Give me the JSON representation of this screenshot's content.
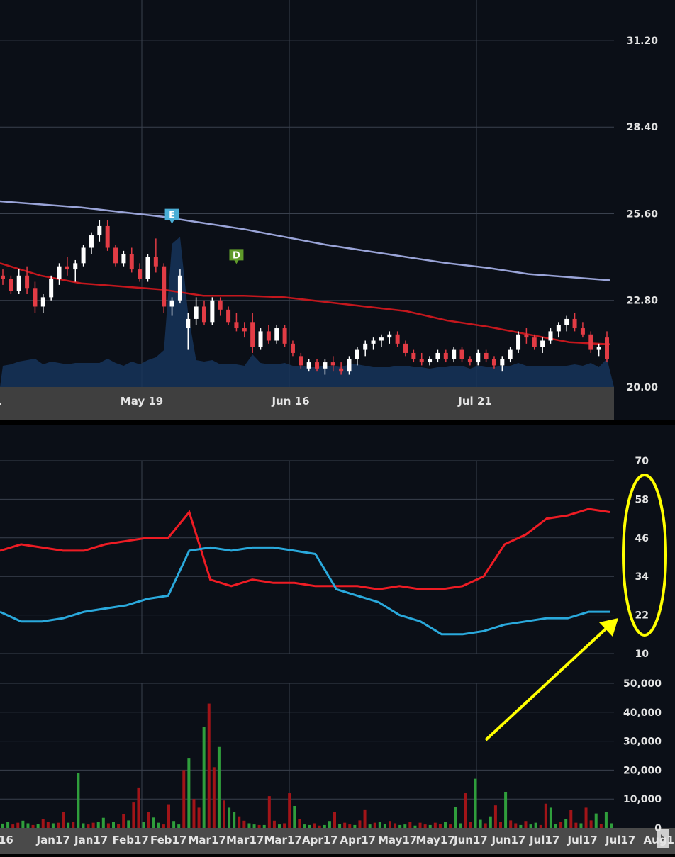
{
  "colors": {
    "background": "#0b0f17",
    "price_area": "#16345a",
    "grid": "#3a414e",
    "up_candle": "#ffffff",
    "down_candle": "#e23c45",
    "ma_long": "#9aa4d8",
    "ma_short": "#c4171d",
    "rsi_red": "#ee1c24",
    "rsi_blue": "#2aa9dc",
    "vol_up": "#2f9e3c",
    "vol_down": "#a11418",
    "axis_bar": "#3f3f3f",
    "annotation": "#ffff00"
  },
  "chart_data": [
    {
      "type": "line",
      "panel": "price",
      "ylim": [
        20.0,
        32.0
      ],
      "yticks": [
        "31.20",
        "28.40",
        "25.60",
        "22.80",
        "20.00"
      ],
      "xtick_labels": [
        "1",
        "May 19",
        "Jun 16",
        "Jul 21"
      ],
      "series": [
        {
          "kind": "long-moving-average",
          "values": [
            26.0,
            25.9,
            25.8,
            25.65,
            25.5,
            25.3,
            25.1,
            24.85,
            24.6,
            24.4,
            24.2,
            24.0,
            23.85,
            23.65,
            23.55,
            23.45
          ]
        },
        {
          "kind": "short-moving-average",
          "values": [
            24.0,
            23.6,
            23.35,
            23.25,
            23.15,
            22.95,
            22.95,
            22.9,
            22.75,
            22.6,
            22.45,
            22.15,
            21.95,
            21.7,
            21.45,
            21.38
          ]
        }
      ],
      "candles": [
        [
          23.6,
          23.8,
          23.3,
          23.5
        ],
        [
          23.5,
          23.6,
          23.0,
          23.1
        ],
        [
          23.1,
          23.8,
          23.0,
          23.6
        ],
        [
          23.6,
          23.9,
          23.0,
          23.2
        ],
        [
          23.2,
          23.4,
          22.4,
          22.6
        ],
        [
          22.6,
          23.0,
          22.4,
          22.9
        ],
        [
          22.9,
          23.6,
          22.8,
          23.5
        ],
        [
          23.5,
          24.0,
          23.3,
          23.9
        ],
        [
          23.9,
          24.2,
          23.6,
          23.8
        ],
        [
          23.8,
          24.1,
          23.4,
          24.0
        ],
        [
          24.0,
          24.6,
          23.9,
          24.5
        ],
        [
          24.5,
          25.0,
          24.3,
          24.9
        ],
        [
          24.9,
          25.4,
          24.7,
          25.2
        ],
        [
          25.2,
          25.4,
          24.4,
          24.5
        ],
        [
          24.5,
          24.6,
          23.9,
          24.0
        ],
        [
          24.0,
          24.4,
          23.9,
          24.3
        ],
        [
          24.3,
          24.5,
          23.7,
          23.8
        ],
        [
          23.8,
          24.0,
          23.4,
          23.5
        ],
        [
          23.5,
          24.3,
          23.4,
          24.2
        ],
        [
          24.2,
          24.8,
          23.7,
          23.9
        ],
        [
          23.9,
          24.0,
          22.4,
          22.6
        ],
        [
          22.6,
          22.9,
          22.3,
          22.8
        ],
        [
          22.8,
          23.8,
          22.7,
          23.6
        ],
        [
          21.9,
          22.4,
          21.2,
          22.2
        ],
        [
          22.2,
          22.9,
          22.0,
          22.6
        ],
        [
          22.6,
          22.8,
          22.0,
          22.1
        ],
        [
          22.1,
          22.9,
          22.0,
          22.8
        ],
        [
          22.8,
          22.9,
          22.3,
          22.5
        ],
        [
          22.5,
          22.6,
          22.0,
          22.1
        ],
        [
          22.1,
          22.4,
          21.8,
          21.9
        ],
        [
          21.9,
          22.1,
          21.6,
          21.8
        ],
        [
          22.1,
          22.4,
          21.1,
          21.3
        ],
        [
          21.3,
          21.9,
          21.2,
          21.8
        ],
        [
          21.8,
          22.0,
          21.4,
          21.5
        ],
        [
          21.5,
          22.0,
          21.4,
          21.9
        ],
        [
          21.9,
          22.0,
          21.3,
          21.4
        ],
        [
          21.4,
          21.5,
          21.0,
          21.1
        ],
        [
          21.0,
          21.1,
          20.6,
          20.7
        ],
        [
          20.6,
          20.9,
          20.5,
          20.8
        ],
        [
          20.8,
          20.9,
          20.5,
          20.6
        ],
        [
          20.6,
          20.9,
          20.4,
          20.8
        ],
        [
          20.8,
          21.0,
          20.5,
          20.7
        ],
        [
          20.6,
          20.8,
          20.4,
          20.5
        ],
        [
          20.5,
          21.0,
          20.4,
          20.9
        ],
        [
          20.9,
          21.3,
          20.7,
          21.2
        ],
        [
          21.2,
          21.5,
          21.0,
          21.4
        ],
        [
          21.4,
          21.6,
          21.2,
          21.5
        ],
        [
          21.5,
          21.7,
          21.3,
          21.6
        ],
        [
          21.6,
          21.8,
          21.4,
          21.7
        ],
        [
          21.7,
          21.8,
          21.3,
          21.4
        ],
        [
          21.4,
          21.5,
          21.0,
          21.1
        ],
        [
          21.1,
          21.2,
          20.8,
          20.9
        ],
        [
          20.9,
          21.1,
          20.7,
          20.8
        ],
        [
          20.8,
          21.0,
          20.7,
          20.9
        ],
        [
          20.9,
          21.2,
          20.8,
          21.1
        ],
        [
          21.1,
          21.2,
          20.8,
          20.9
        ],
        [
          20.9,
          21.3,
          20.8,
          21.2
        ],
        [
          21.2,
          21.3,
          20.8,
          20.9
        ],
        [
          20.9,
          21.0,
          20.7,
          20.8
        ],
        [
          20.8,
          21.2,
          20.7,
          21.1
        ],
        [
          21.1,
          21.2,
          20.8,
          20.9
        ],
        [
          20.9,
          21.0,
          20.6,
          20.7
        ],
        [
          20.7,
          21.0,
          20.5,
          20.9
        ],
        [
          20.9,
          21.3,
          20.8,
          21.2
        ],
        [
          21.2,
          21.8,
          21.1,
          21.7
        ],
        [
          21.7,
          21.9,
          21.4,
          21.6
        ],
        [
          21.6,
          21.7,
          21.2,
          21.3
        ],
        [
          21.3,
          21.6,
          21.1,
          21.5
        ],
        [
          21.5,
          21.9,
          21.4,
          21.8
        ],
        [
          21.8,
          22.1,
          21.6,
          22.0
        ],
        [
          22.0,
          22.3,
          21.8,
          22.2
        ],
        [
          22.2,
          22.4,
          21.8,
          21.9
        ],
        [
          21.9,
          22.1,
          21.6,
          21.7
        ],
        [
          21.7,
          21.8,
          21.1,
          21.2
        ],
        [
          21.2,
          21.4,
          21.0,
          21.3
        ],
        [
          21.6,
          21.8,
          20.8,
          20.9
        ]
      ],
      "markers": [
        {
          "label": "E",
          "color": "#4aaed6",
          "candle": 21,
          "price": 25.3
        },
        {
          "label": "D",
          "color": "#5f9a2a",
          "candle": 29,
          "price": 24.0
        }
      ]
    },
    {
      "type": "line",
      "panel": "indicator",
      "ylim": [
        10,
        70
      ],
      "yticks": [
        "70",
        "58",
        "46",
        "34",
        "22",
        "10"
      ],
      "series": [
        {
          "color": "red",
          "values": [
            42,
            44,
            43,
            42,
            42,
            44,
            45,
            46,
            46,
            54,
            33,
            31,
            33,
            32,
            32,
            31,
            31,
            31,
            30,
            31,
            30,
            30,
            31,
            34,
            44,
            47,
            52,
            53,
            55,
            54
          ]
        },
        {
          "color": "blue",
          "values": [
            23,
            20,
            20,
            21,
            23,
            24,
            25,
            27,
            28,
            42,
            43,
            42,
            43,
            43,
            42,
            41,
            30,
            28,
            26,
            22,
            20,
            16,
            16,
            17,
            19,
            20,
            21,
            21,
            23,
            23
          ]
        }
      ]
    },
    {
      "type": "bar",
      "panel": "volume",
      "ylim": [
        0,
        50000
      ],
      "yticks": [
        "50,000",
        "40,000",
        "30,000",
        "20,000",
        "10,000",
        "0"
      ],
      "xtick_labels": [
        "16",
        "Jan17",
        "Jan17",
        "Feb17",
        "Feb17",
        "Mar17",
        "Mar17",
        "Mar17",
        "Apr17",
        "Apr17",
        "May17",
        "May17",
        "Jun17",
        "Jun17",
        "Jul17",
        "Jul17",
        "Jul17",
        "Aug1"
      ],
      "values": [
        1500,
        2000,
        1200,
        1800,
        2500,
        1600,
        1000,
        1400,
        3000,
        2200,
        1600,
        1800,
        5600,
        1800,
        2000,
        19000,
        1600,
        1200,
        1800,
        2000,
        3500,
        1600,
        2200,
        1400,
        4800,
        2600,
        8800,
        14000,
        2000,
        5400,
        3600,
        1800,
        1200,
        8200,
        2400,
        1200,
        20000,
        24000,
        10000,
        7000,
        35000,
        43000,
        21000,
        28000,
        9500,
        7000,
        5500,
        4000,
        2500,
        1600,
        1200,
        1000,
        1000,
        11000,
        2500,
        1200,
        1600,
        12000,
        7600,
        3000,
        1200,
        1000,
        1600,
        800,
        1000,
        2400,
        5400,
        1400,
        1800,
        1200,
        1000,
        2600,
        6400,
        1200,
        1800,
        2200,
        1400,
        2400,
        1600,
        1000,
        1200,
        2000,
        800,
        1800,
        1200,
        1000,
        1800,
        1400,
        2000,
        1200,
        7200,
        1600,
        12000,
        2200,
        17000,
        2800,
        1600,
        4000,
        7800,
        2200,
        12500,
        2600,
        1600,
        1000,
        2400,
        1200,
        1800,
        1000,
        8400,
        7000,
        1400,
        2200,
        3000,
        6200,
        1800,
        1600,
        7000,
        2600,
        5000,
        1400,
        5500,
        1600
      ]
    }
  ],
  "annotation": {
    "shape": "ellipse-and-arrow",
    "color": "#ffff00"
  }
}
